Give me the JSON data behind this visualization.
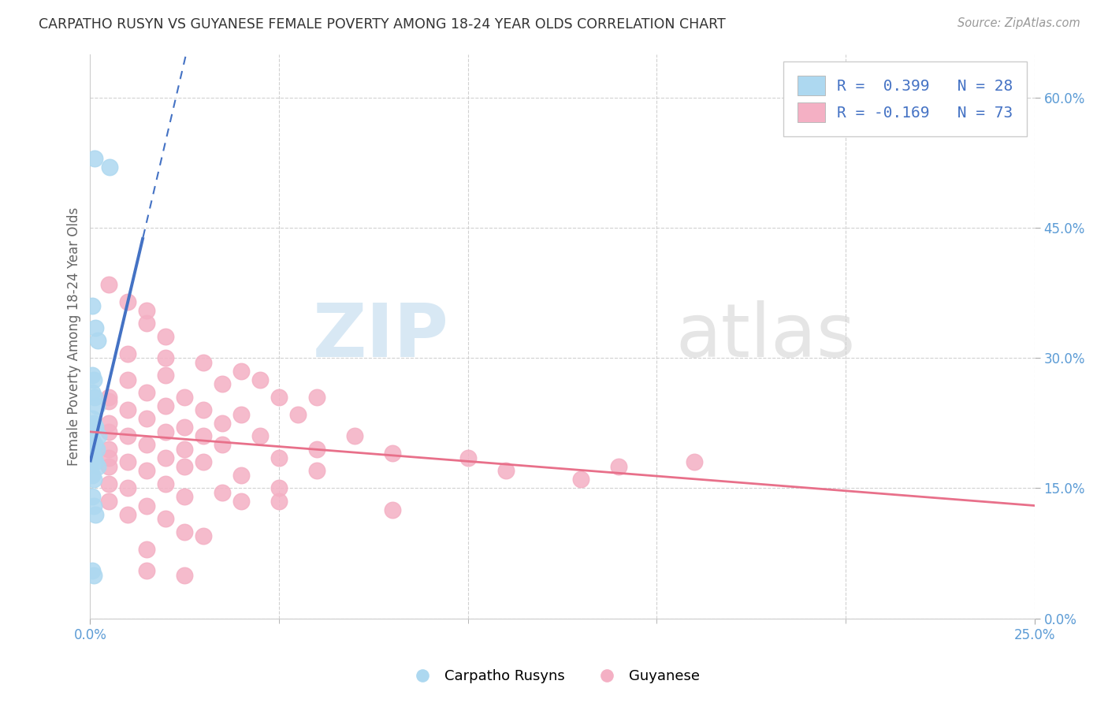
{
  "title": "CARPATHO RUSYN VS GUYANESE FEMALE POVERTY AMONG 18-24 YEAR OLDS CORRELATION CHART",
  "source": "Source: ZipAtlas.com",
  "ylabel": "Female Poverty Among 18-24 Year Olds",
  "xlim": [
    0.0,
    25.0
  ],
  "ylim": [
    0.0,
    65.0
  ],
  "xlabel_vals": [
    0.0,
    25.0
  ],
  "ylabel_vals": [
    0.0,
    15.0,
    30.0,
    45.0,
    60.0
  ],
  "xlabel_minor_vals": [
    5.0,
    10.0,
    15.0,
    20.0
  ],
  "legend_label_blue": "Carpatho Rusyns",
  "legend_label_pink": "Guyanese",
  "blue_color": "#add8f0",
  "pink_color": "#f4b0c4",
  "blue_line_color": "#4472c4",
  "pink_line_color": "#e8708a",
  "watermark_zip_color": "#c8dff0",
  "watermark_atlas_color": "#d4d4d4",
  "blue_scatter_x": [
    0.12,
    0.52,
    0.06,
    0.14,
    0.2,
    0.06,
    0.1,
    0.05,
    0.12,
    0.18,
    0.05,
    0.09,
    0.13,
    0.22,
    0.05,
    0.11,
    0.17,
    0.05,
    0.09,
    0.13,
    0.21,
    0.05,
    0.1,
    0.05,
    0.09,
    0.13,
    0.06,
    0.1
  ],
  "blue_scatter_y": [
    53.0,
    52.0,
    36.0,
    33.5,
    32.0,
    28.0,
    27.5,
    26.0,
    25.5,
    24.5,
    23.0,
    22.5,
    22.0,
    21.0,
    20.5,
    20.0,
    19.5,
    19.0,
    18.5,
    18.0,
    17.5,
    16.5,
    16.0,
    14.0,
    13.0,
    12.0,
    5.5,
    5.0
  ],
  "pink_scatter_x": [
    0.5,
    1.0,
    1.5,
    1.5,
    2.0,
    1.0,
    2.0,
    3.0,
    4.0,
    1.0,
    2.0,
    3.5,
    4.5,
    0.5,
    1.5,
    2.5,
    5.0,
    6.0,
    0.5,
    1.0,
    2.0,
    3.0,
    4.0,
    5.5,
    0.5,
    1.5,
    2.5,
    3.5,
    0.5,
    1.0,
    2.0,
    3.0,
    4.5,
    7.0,
    0.5,
    1.5,
    2.5,
    3.5,
    6.0,
    8.0,
    0.5,
    1.0,
    2.0,
    3.0,
    5.0,
    10.0,
    14.0,
    16.0,
    0.5,
    1.5,
    2.5,
    4.0,
    6.0,
    11.0,
    13.0,
    0.5,
    1.0,
    2.0,
    3.5,
    5.0,
    0.5,
    1.5,
    2.5,
    4.0,
    1.0,
    2.0,
    2.5,
    3.0,
    1.5,
    5.0,
    8.0,
    1.5,
    2.5
  ],
  "pink_scatter_y": [
    38.5,
    36.5,
    35.5,
    34.0,
    32.5,
    30.5,
    30.0,
    29.5,
    28.5,
    27.5,
    28.0,
    27.0,
    27.5,
    25.5,
    26.0,
    25.5,
    25.5,
    25.5,
    25.0,
    24.0,
    24.5,
    24.0,
    23.5,
    23.5,
    22.5,
    23.0,
    22.0,
    22.5,
    21.5,
    21.0,
    21.5,
    21.0,
    21.0,
    21.0,
    19.5,
    20.0,
    19.5,
    20.0,
    19.5,
    19.0,
    18.5,
    18.0,
    18.5,
    18.0,
    18.5,
    18.5,
    17.5,
    18.0,
    17.5,
    17.0,
    17.5,
    16.5,
    17.0,
    17.0,
    16.0,
    15.5,
    15.0,
    15.5,
    14.5,
    15.0,
    13.5,
    13.0,
    14.0,
    13.5,
    12.0,
    11.5,
    10.0,
    9.5,
    8.0,
    13.5,
    12.5,
    5.5,
    5.0
  ],
  "blue_trend_x0": 0.0,
  "blue_trend_y0": 18.0,
  "blue_trend_slope": 18.5,
  "blue_solid_x_end": 1.4,
  "pink_trend_x0": 0.0,
  "pink_trend_y0": 21.5,
  "pink_trend_x1": 25.0,
  "pink_trend_y1": 13.0
}
